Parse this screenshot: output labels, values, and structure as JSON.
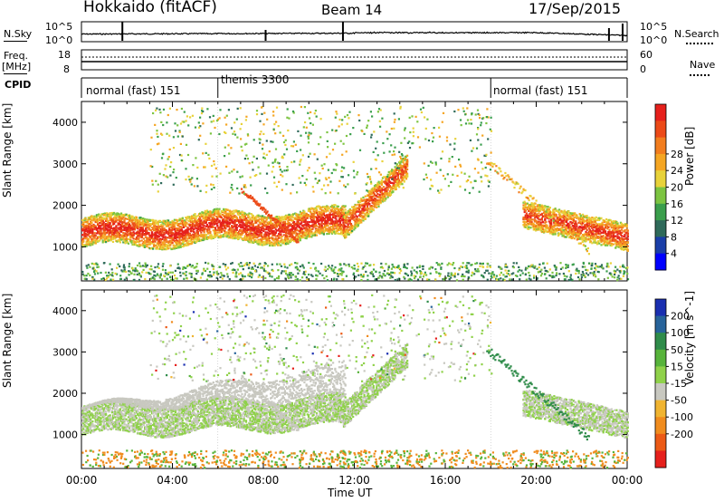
{
  "header": {
    "station": "Hokkaido (fitACF)",
    "beam": "Beam 14",
    "date": "17/Sep/2015"
  },
  "top_panels": {
    "nsky": {
      "label": "N.Sky",
      "ticks_left": [
        "10^5",
        "10^0"
      ],
      "ticks_right": [
        "10^5",
        "10^0"
      ],
      "right_label": "N.Search"
    },
    "freq": {
      "label_lines": [
        "Freq.",
        "[MHz]"
      ],
      "ticks_left": [
        "18",
        "8"
      ],
      "ticks_right": [
        "60",
        "0"
      ],
      "right_label": "Nave"
    },
    "cpid": {
      "label": "CPID",
      "segments": [
        {
          "name": "normal (fast) 151",
          "start_hour": 0
        },
        {
          "name": "themis 3300",
          "start_hour": 6
        },
        {
          "name": "normal (fast) 151",
          "start_hour": 18
        }
      ]
    }
  },
  "chart_data": [
    {
      "type": "heatmap",
      "panel": "power",
      "xlabel": "",
      "ylabel": "Slant Range [km]",
      "x_range_hours": [
        0,
        24
      ],
      "ylim": [
        180,
        4500
      ],
      "yticks": [
        1000,
        2000,
        3000,
        4000
      ],
      "colorbar": {
        "label": "Power [dB]",
        "ticks": [
          4,
          8,
          12,
          16,
          20,
          24,
          28
        ],
        "colors": [
          "#0000ff",
          "#1a3ea8",
          "#2f6a5a",
          "#3a9e4c",
          "#7cc441",
          "#e8d23a",
          "#f5a623",
          "#f27d1e",
          "#ec4a18",
          "#e6201c"
        ]
      },
      "features": [
        {
          "label": "main echo band",
          "hours": [
            0,
            11.5
          ],
          "range_km": [
            1000,
            1800
          ],
          "power_db": 26
        },
        {
          "label": "rising band",
          "hours": [
            11.5,
            14.2
          ],
          "range_km": [
            1400,
            3200
          ],
          "power_db": 24
        },
        {
          "label": "evening band",
          "hours": [
            19.5,
            24
          ],
          "range_km": [
            900,
            1800
          ],
          "power_db": 24
        },
        {
          "label": "patchy far echoes",
          "hours": [
            3,
            18
          ],
          "range_km": [
            2400,
            4300
          ],
          "power_db": 14
        },
        {
          "label": "ground scatter near",
          "hours": [
            0,
            24
          ],
          "range_km": [
            200,
            600
          ],
          "power_db": 12
        }
      ]
    },
    {
      "type": "heatmap",
      "panel": "velocity",
      "xlabel": "Time UT",
      "ylabel": "Slant Range [km]",
      "x_range_hours": [
        0,
        24
      ],
      "xticks": [
        "00:00",
        "04:00",
        "08:00",
        "12:00",
        "16:00",
        "20:00",
        "00:00"
      ],
      "ylim": [
        180,
        4500
      ],
      "yticks": [
        1000,
        2000,
        3000,
        4000
      ],
      "colorbar": {
        "label": "Velocity [m s^-1]",
        "ticks": [
          200,
          100,
          50,
          15,
          -15,
          -50,
          -100,
          -200
        ],
        "colors": [
          "#1a2fb0",
          "#27639a",
          "#2f8c4a",
          "#57b33b",
          "#8fd14a",
          "#c8c8c0",
          "#f0b431",
          "#f08c1e",
          "#ec5a16",
          "#e6201c"
        ]
      },
      "features": [
        {
          "label": "low-velocity band",
          "hours": [
            0,
            14.2
          ],
          "range_km": [
            900,
            3300
          ],
          "velocity": 0
        },
        {
          "label": "evening positive",
          "hours": [
            18,
            22
          ],
          "range_km": [
            1300,
            3000
          ],
          "velocity": 40
        },
        {
          "label": "evening band",
          "hours": [
            20,
            24
          ],
          "range_km": [
            900,
            1700
          ],
          "velocity": 0
        },
        {
          "label": "ground scatter near",
          "hours": [
            0,
            24
          ],
          "range_km": [
            200,
            600
          ],
          "velocity": -40
        }
      ]
    }
  ]
}
